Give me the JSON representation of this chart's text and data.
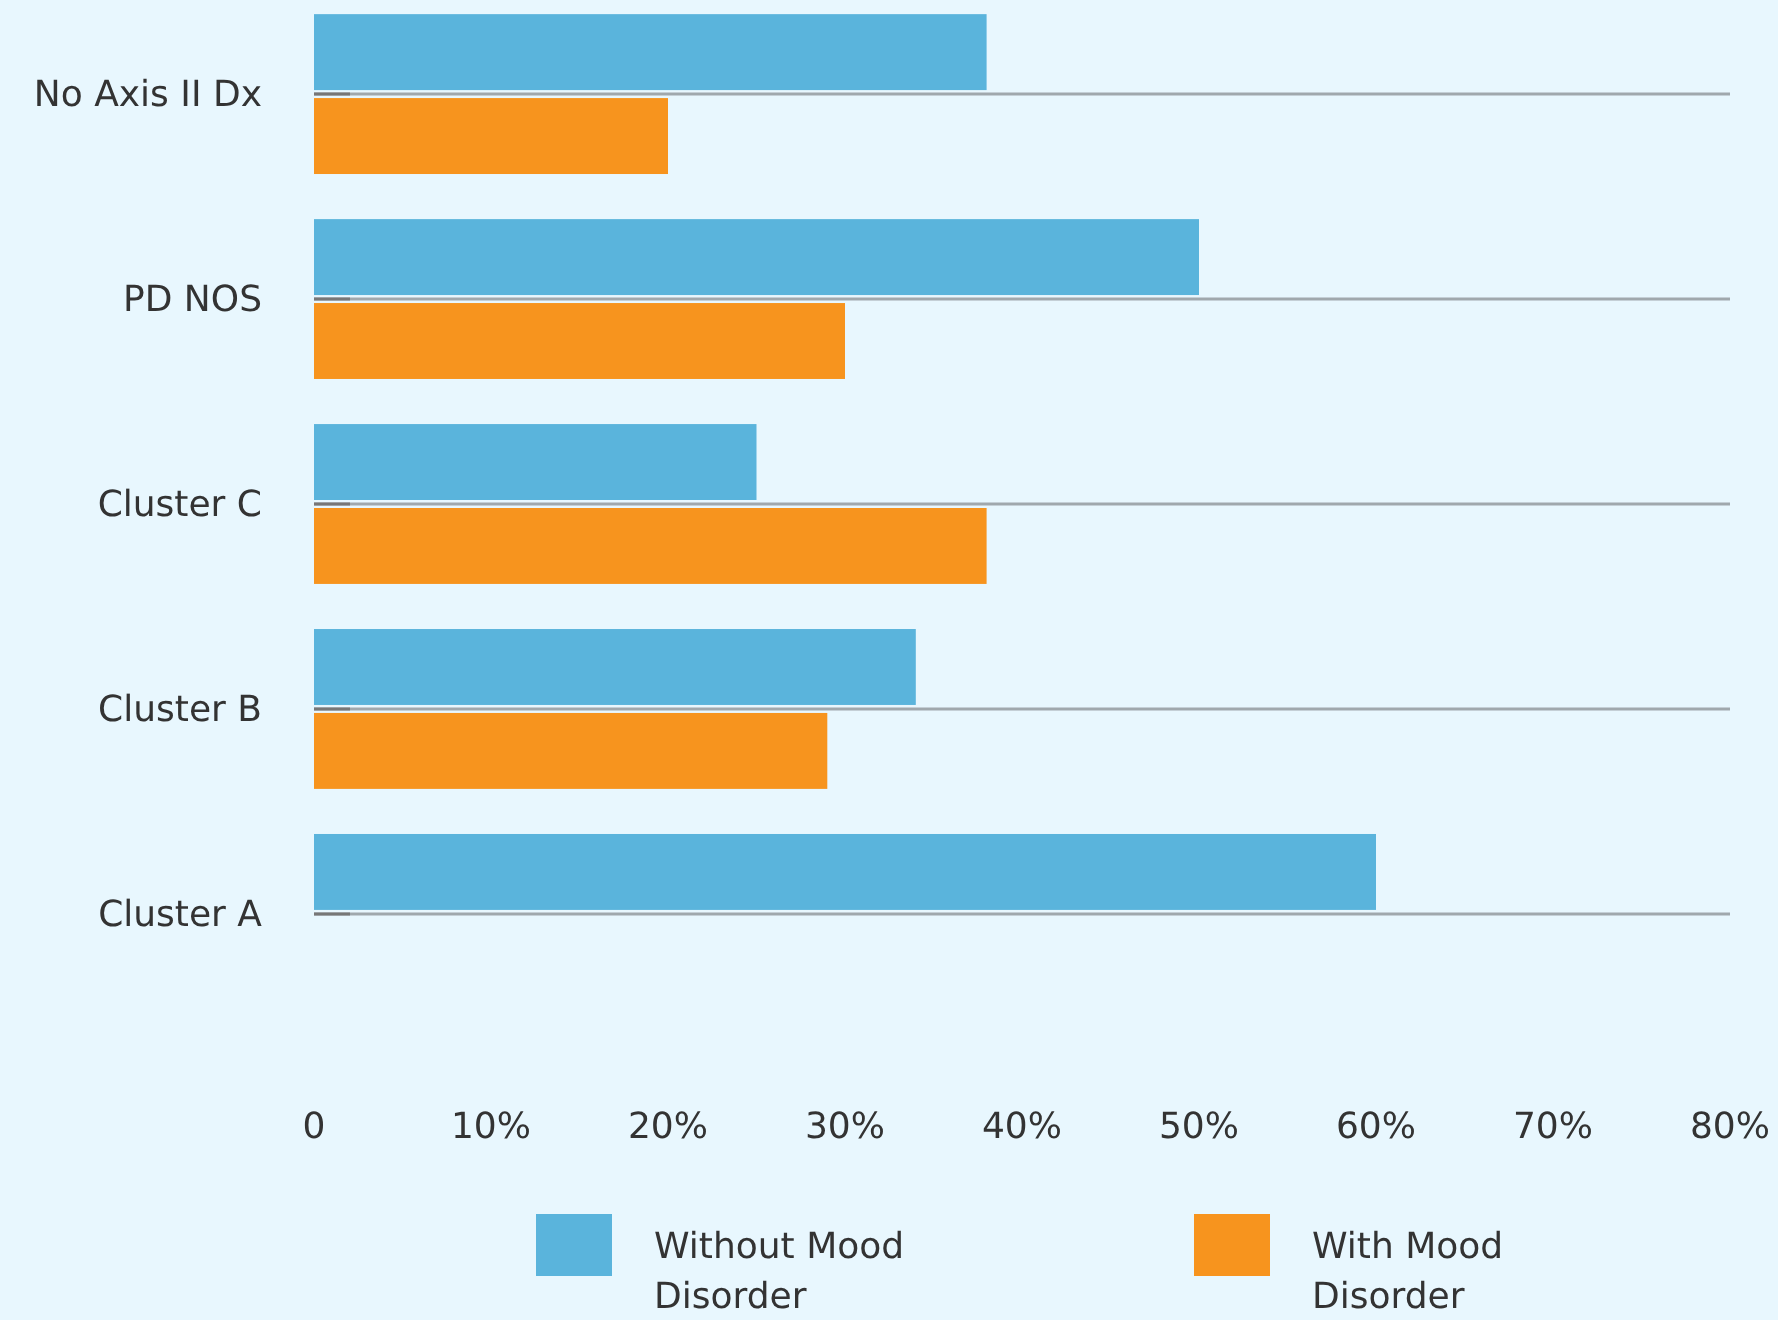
{
  "chart_data": {
    "type": "bar",
    "orientation": "horizontal",
    "categories": [
      "No Axis II Dx",
      "PD NOS",
      "Cluster C",
      "Cluster B",
      "Cluster A"
    ],
    "series": [
      {
        "name": "Without Mood Disorder",
        "color": "#5ab4dc",
        "values": [
          38,
          50,
          25,
          34,
          60
        ]
      },
      {
        "name": "With Mood Disorder",
        "color": "#f7941e",
        "values": [
          20,
          30,
          38,
          29,
          null
        ]
      }
    ],
    "xlim": [
      0,
      80
    ],
    "xticks": [
      0,
      {
        "value": 10,
        "label": "10%"
      },
      {
        "value": 20,
        "label": "20%"
      },
      {
        "value": 30,
        "label": "30%"
      },
      {
        "value": 40,
        "label": "40%"
      },
      {
        "value": 50,
        "label": "50%"
      },
      {
        "value": 60,
        "label": "60%"
      },
      {
        "value": 70,
        "label": "70%"
      },
      {
        "value": 80,
        "label": "80%"
      }
    ],
    "grid": "y",
    "legend": "bottom"
  }
}
